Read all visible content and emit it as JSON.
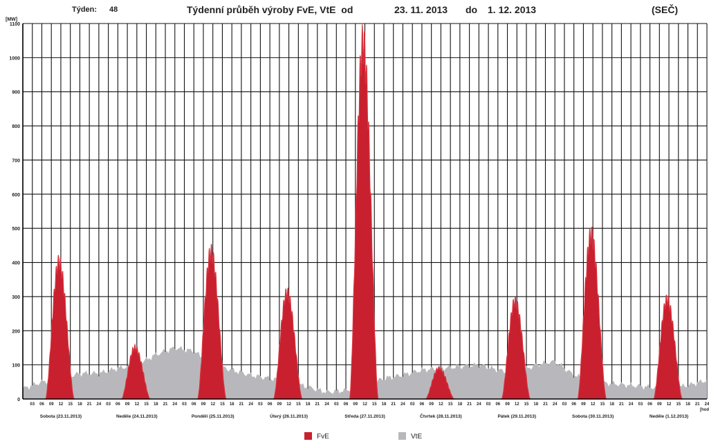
{
  "header": {
    "week_label": "Týden:",
    "week_number": "48",
    "title": "Týdenní průběh výroby FvE, VtE  od",
    "date_from": "23. 11. 2013",
    "date_to_label": "do",
    "date_to": "1. 12. 2013",
    "timezone": "(SEČ)"
  },
  "chart_data": {
    "type": "area",
    "ylabel": "[MW]",
    "xunit": "[hod]",
    "ylim": [
      0,
      1100
    ],
    "yticks": [
      0,
      100,
      200,
      300,
      400,
      500,
      600,
      700,
      800,
      900,
      1000,
      1100
    ],
    "grid": true,
    "legend_position": "bottom",
    "hour_ticks": [
      "03",
      "06",
      "09",
      "12",
      "15",
      "18",
      "21",
      "24"
    ],
    "days": [
      "Sobota (23.11.2013)",
      "Neděle (24.11.2013)",
      "Pondělí (25.11.2013)",
      "Úterý (26.11.2013)",
      "Středa (27.11.2013)",
      "Čtvrtek (28.11.2013)",
      "Pátek (29.11.2013)",
      "Sobota (30.11.2013)",
      "Neděle (1.12.2013)"
    ],
    "series": [
      {
        "name": "FvE",
        "color": "#c8202e",
        "daily_peak_mw": [
          400,
          150,
          430,
          310,
          1040,
          90,
          285,
          480,
          290
        ]
      },
      {
        "name": "VtE",
        "color": "#b8b8bc",
        "x_hours": [
          0,
          6,
          12,
          18,
          24,
          30,
          36,
          42,
          48,
          54,
          60,
          66,
          72,
          78,
          84,
          90,
          96,
          102,
          108,
          114,
          120,
          126,
          132,
          144,
          150,
          156,
          162,
          168,
          174,
          180,
          186,
          192,
          198,
          204,
          210,
          216
        ],
        "values_mw": [
          30,
          50,
          60,
          75,
          75,
          90,
          100,
          130,
          150,
          140,
          100,
          85,
          70,
          60,
          50,
          35,
          20,
          25,
          40,
          60,
          70,
          85,
          90,
          100,
          85,
          75,
          100,
          110,
          70,
          50,
          45,
          40,
          35,
          30,
          40,
          55
        ]
      }
    ]
  }
}
